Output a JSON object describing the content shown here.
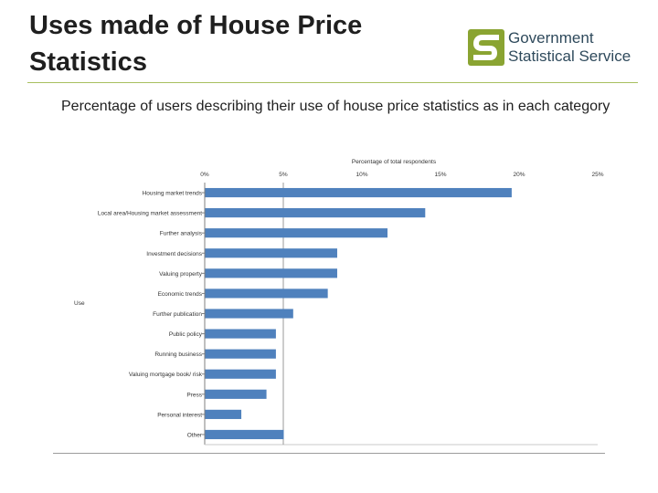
{
  "slide": {
    "title": "Uses made of House Price Statistics",
    "subtitle": "Percentage of users describing their use of house price statistics as in each category"
  },
  "logo": {
    "line1": "Government",
    "line2": "Statistical Service",
    "colors": {
      "green": "#8aa432",
      "slate": "#2f4a5c"
    }
  },
  "chart_data": {
    "type": "bar",
    "orientation": "horizontal",
    "title": "Percentage of total respondents",
    "xlabel": "Percentage of total respondents",
    "ylabel": "Use",
    "xlim": [
      0,
      25
    ],
    "x_ticks": [
      0,
      5,
      10,
      15,
      20,
      25
    ],
    "x_tick_labels": [
      "0%",
      "5%",
      "10%",
      "15%",
      "20%",
      "25%"
    ],
    "bar_color": "#4f81bd",
    "categories": [
      "Housing market trends",
      "Local area/Housing market assessment",
      "Further analysis",
      "Investment decisions",
      "Valuing property",
      "Economic trends",
      "Further publication",
      "Public policy",
      "Running business",
      "Valuing mortgage book/ risk",
      "Press",
      "Personal interest",
      "Other"
    ],
    "values": [
      19.5,
      14.0,
      11.6,
      8.4,
      8.4,
      7.8,
      5.6,
      4.5,
      4.5,
      4.5,
      3.9,
      2.3,
      5.0
    ]
  }
}
